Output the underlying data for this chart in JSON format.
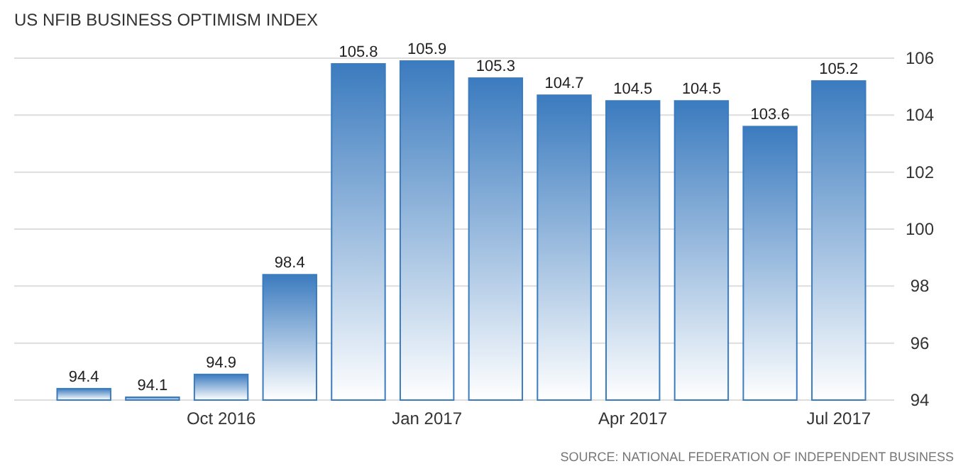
{
  "chart_data": {
    "type": "bar",
    "title": "US NFIB BUSINESS OPTIMISM INDEX",
    "categories": [
      null,
      null,
      "Oct 2016",
      null,
      null,
      "Jan 2017",
      null,
      null,
      "Apr 2017",
      null,
      null,
      "Jul 2017"
    ],
    "values": [
      94.4,
      94.1,
      94.9,
      98.4,
      105.8,
      105.9,
      105.3,
      104.7,
      104.5,
      104.5,
      103.6,
      105.2
    ],
    "color": "#3b7bbf",
    "ylim": [
      94,
      106
    ],
    "yticks": [
      94,
      96,
      98,
      100,
      102,
      104,
      106
    ],
    "grid": "y",
    "data_labels": true,
    "annotations": [
      "SOURCE: NATIONAL FEDERATION OF INDEPENDENT BUSINESS"
    ]
  }
}
